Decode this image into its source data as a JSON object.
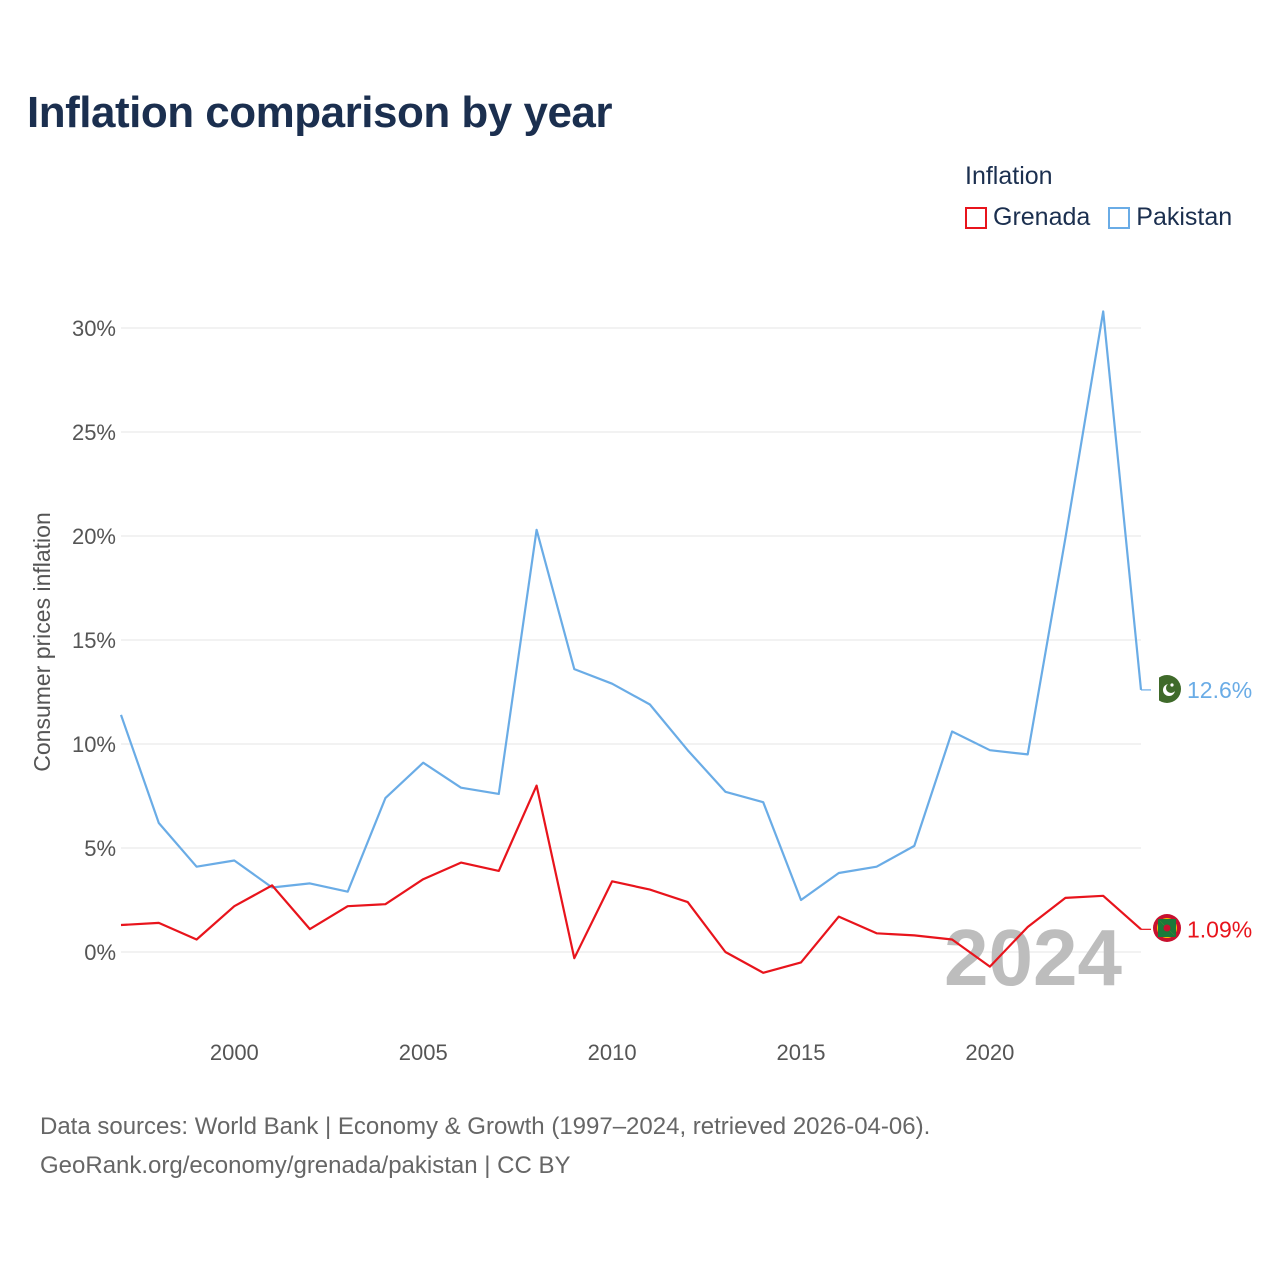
{
  "title": "Inflation comparison by year",
  "legend": {
    "title": "Inflation",
    "items": [
      {
        "name": "Grenada",
        "color": "#e8141c"
      },
      {
        "name": "Pakistan",
        "color": "#6aace6"
      }
    ]
  },
  "year_watermark": "2024",
  "sources": {
    "line1": "Data sources: World Bank | Economy & Growth (1997–2024, retrieved 2026-04-06).",
    "line2": "GeoRank.org/economy/grenada/pakistan | CC BY"
  },
  "chart_data": {
    "type": "line",
    "title": "Inflation comparison by year",
    "xlabel": "",
    "ylabel": "Consumer prices inflation",
    "xlim": [
      1997,
      2024
    ],
    "ylim": [
      -4,
      31
    ],
    "x_ticks": [
      2000,
      2005,
      2010,
      2015,
      2020
    ],
    "x_tick_labels": [
      "2000",
      "2005",
      "2010",
      "2015",
      "2020"
    ],
    "y_ticks": [
      0,
      5,
      10,
      15,
      20,
      25,
      30
    ],
    "y_tick_labels": [
      "0%",
      "5%",
      "10%",
      "15%",
      "20%",
      "25%",
      "30%"
    ],
    "grid": true,
    "x": [
      1997,
      1998,
      1999,
      2000,
      2001,
      2002,
      2003,
      2004,
      2005,
      2006,
      2007,
      2008,
      2009,
      2010,
      2011,
      2012,
      2013,
      2014,
      2015,
      2016,
      2017,
      2018,
      2019,
      2020,
      2021,
      2022,
      2023,
      2024
    ],
    "series": [
      {
        "name": "Pakistan",
        "color": "#6aace6",
        "values": [
          11.4,
          6.2,
          4.1,
          4.4,
          3.1,
          3.3,
          2.9,
          7.4,
          9.1,
          7.9,
          7.6,
          20.3,
          13.6,
          12.9,
          11.9,
          9.7,
          7.7,
          7.2,
          2.5,
          3.8,
          4.1,
          5.1,
          10.6,
          9.7,
          9.5,
          19.9,
          30.8,
          12.6
        ],
        "end_label": "12.6%"
      },
      {
        "name": "Grenada",
        "color": "#e8141c",
        "values": [
          1.3,
          1.4,
          0.6,
          2.2,
          3.2,
          1.1,
          2.2,
          2.3,
          3.5,
          4.3,
          3.9,
          8.0,
          -0.3,
          3.4,
          3.0,
          2.4,
          0.0,
          -1.0,
          -0.5,
          1.7,
          0.9,
          0.8,
          0.6,
          -0.7,
          1.2,
          2.6,
          2.7,
          1.09
        ],
        "end_label": "1.09%"
      }
    ]
  }
}
